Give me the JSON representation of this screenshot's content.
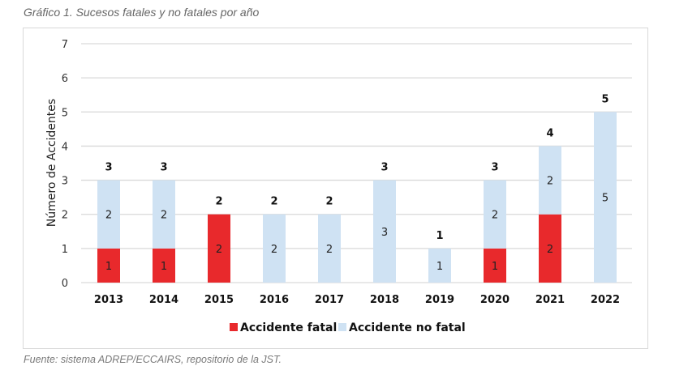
{
  "caption": "Gráfico 1. Sucesos fatales y no fatales por año",
  "source": "Fuente: sistema ADREP/ECCAIRS, repositorio de la JST.",
  "chart_data": {
    "type": "bar",
    "stacked": true,
    "title": "",
    "xlabel": "",
    "ylabel": "Número de Accidentes",
    "ylim": [
      0,
      7
    ],
    "yticks": [
      0,
      1,
      2,
      3,
      4,
      5,
      6,
      7
    ],
    "grid": true,
    "legend_position": "bottom",
    "categories": [
      "2013",
      "2014",
      "2015",
      "2016",
      "2017",
      "2018",
      "2019",
      "2020",
      "2021",
      "2022"
    ],
    "series": [
      {
        "name": "Accidente fatal",
        "color": "#e8292c",
        "values": [
          1,
          1,
          2,
          0,
          0,
          0,
          0,
          1,
          2,
          0
        ]
      },
      {
        "name": "Accidente no fatal",
        "color": "#cfe2f3",
        "values": [
          2,
          2,
          0,
          2,
          2,
          3,
          1,
          2,
          2,
          5
        ]
      }
    ],
    "totals": [
      3,
      3,
      2,
      2,
      2,
      3,
      1,
      3,
      4,
      5
    ]
  }
}
